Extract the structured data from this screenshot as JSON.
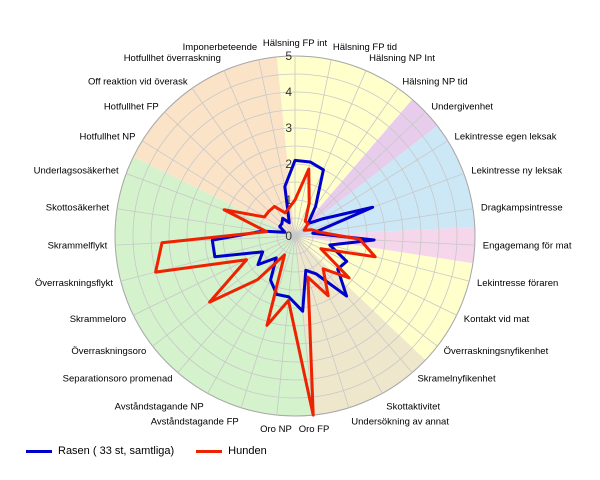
{
  "chart_data": {
    "type": "radar",
    "title": "",
    "rmax": 5,
    "ticks": [
      "1",
      "2",
      "3",
      "4",
      "5"
    ],
    "tick_values": [
      1,
      2,
      3,
      4,
      5
    ],
    "categories": [
      "Hälsning FP int",
      "Hälsning FP tid",
      "Hälsning NP Int",
      "Hälsning NP tid",
      "Undergivenhet",
      "Lekintresse egen leksak",
      "Lekintresse ny leksak",
      "Dragkampsintresse",
      "Engagemang för mat",
      "Lekintresse föraren",
      "Kontakt vid mat",
      "Överraskningsnyfikenhet",
      "Skramelnyfikenhet",
      "Skottaktivitet",
      "Undersökning av annat",
      "Oro FP",
      "Oro NP",
      "Avståndstagande FP",
      "Avståndstagande NP",
      "Separationsoro promenad",
      "Överraskningsoro",
      "Skrammeloro",
      "Överraskningsflykt",
      "Skrammelflykt",
      "Skottosäkerhet",
      "Underlagsosäkerhet",
      "Hotfullhet NP",
      "Hotfullhet FP",
      "Off reaktion vid överask",
      "Hotfullhet överraskning",
      "Imponerbeteende"
    ],
    "series": [
      {
        "name": "Rasen ( 33 st, samtliga)",
        "color": "#0000cc",
        "values": [
          2.1,
          2.1,
          2.0,
          1.0,
          0.5,
          0.9,
          2.3,
          0.5,
          2.2,
          1.0,
          1.6,
          1.5,
          2.2,
          1.2,
          1.0,
          2.1,
          1.7,
          1.7,
          1.4,
          0.8,
          1.3,
          1.0,
          2.3,
          2.3,
          0.9,
          0.3,
          0.5,
          0.5,
          0.6,
          0.4,
          1.4
        ]
      },
      {
        "name": "Hunden",
        "color": "#ee2200",
        "values": [
          1.0,
          1.9,
          1.0,
          0.5,
          0.5,
          0.3,
          0.5,
          0.7,
          1.8,
          2.3,
          0.8,
          1.9,
          1.2,
          1.9,
          1.2,
          5.0,
          1.8,
          2.6,
          0.6,
          1.6,
          3.0,
          1.5,
          4.0,
          3.7,
          0.8,
          2.1,
          1.0,
          1.0,
          1.0,
          0.7,
          0.8
        ]
      }
    ],
    "sectors": [
      {
        "color": "#ffffcc",
        "start": -0.5,
        "end": 3.5
      },
      {
        "color": "#e8ccec",
        "start": 3.5,
        "end": 4.5
      },
      {
        "color": "#cce8f6",
        "start": 4.5,
        "end": 7.5
      },
      {
        "color": "#f6d6ea",
        "start": 7.5,
        "end": 8.5
      },
      {
        "color": "#ffffcc",
        "start": 8.5,
        "end": 11.5
      },
      {
        "color": "#efe7cc",
        "start": 11.5,
        "end": 15.0
      },
      {
        "color": "#d4f2cc",
        "start": 15.0,
        "end": 25.5
      },
      {
        "color": "#fbe3c8",
        "start": 25.5,
        "end": 30.5
      }
    ],
    "legend": [
      {
        "label": "Rasen ( 33 st, samtliga)",
        "color": "#0000cc"
      },
      {
        "label": "Hunden",
        "color": "#ee2200"
      }
    ],
    "legend_position": "bottom-left"
  }
}
